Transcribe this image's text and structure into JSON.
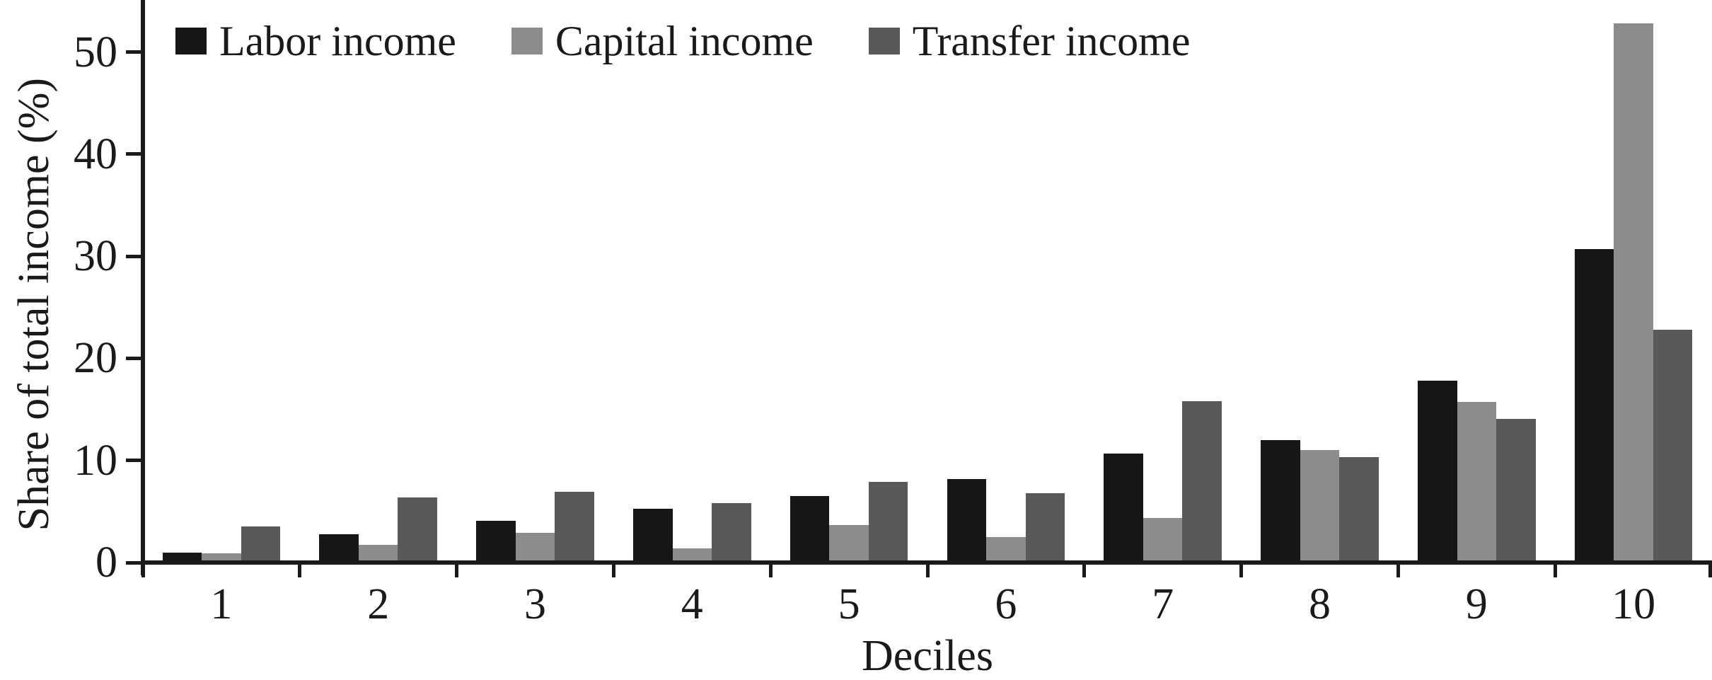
{
  "figure": {
    "background_color": "#ffffff",
    "axis_color": "#1a1a1a",
    "text_color": "#1a1a1a"
  },
  "chart_data": {
    "type": "bar",
    "grouped": true,
    "title": "",
    "xlabel": "Deciles",
    "ylabel": "Share of total income (%)",
    "categories": [
      "1",
      "2",
      "3",
      "4",
      "5",
      "6",
      "7",
      "8",
      "9",
      "10"
    ],
    "series": [
      {
        "name": "Labor income",
        "color": "#161616",
        "values": [
          1.0,
          2.8,
          4.1,
          5.3,
          6.5,
          8.2,
          10.7,
          12.0,
          17.8,
          30.7
        ]
      },
      {
        "name": "Capital income",
        "color": "#8c8c8c",
        "values": [
          0.9,
          1.7,
          2.9,
          1.4,
          3.7,
          2.5,
          4.4,
          11.0,
          15.7,
          52.8
        ]
      },
      {
        "name": "Transfer income",
        "color": "#595959",
        "values": [
          3.5,
          6.4,
          6.9,
          5.8,
          7.9,
          6.8,
          15.8,
          10.3,
          14.1,
          22.8
        ]
      }
    ],
    "ylim": [
      0,
      55
    ],
    "yticks": [
      0,
      10,
      20,
      30,
      40,
      50
    ],
    "grid": false,
    "legend_position": "top-left-inside"
  }
}
